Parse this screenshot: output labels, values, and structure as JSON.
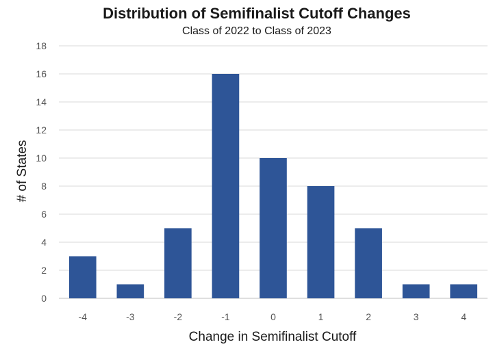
{
  "chart_data": {
    "type": "bar",
    "title": "Distribution of Semifinalist Cutoff Changes",
    "subtitle": "Class of 2022 to Class of 2023",
    "xlabel": "Change in Semifinalist Cutoff",
    "ylabel": "# of States",
    "categories": [
      "-4",
      "-3",
      "-2",
      "-1",
      "0",
      "1",
      "2",
      "3",
      "4"
    ],
    "values": [
      3,
      1,
      5,
      16,
      10,
      8,
      5,
      1,
      1
    ],
    "ylim": [
      0,
      18
    ],
    "yticks": [
      0,
      2,
      4,
      6,
      8,
      10,
      12,
      14,
      16,
      18
    ],
    "grid": true,
    "legend": "none",
    "bar_color": "#2e5597"
  }
}
